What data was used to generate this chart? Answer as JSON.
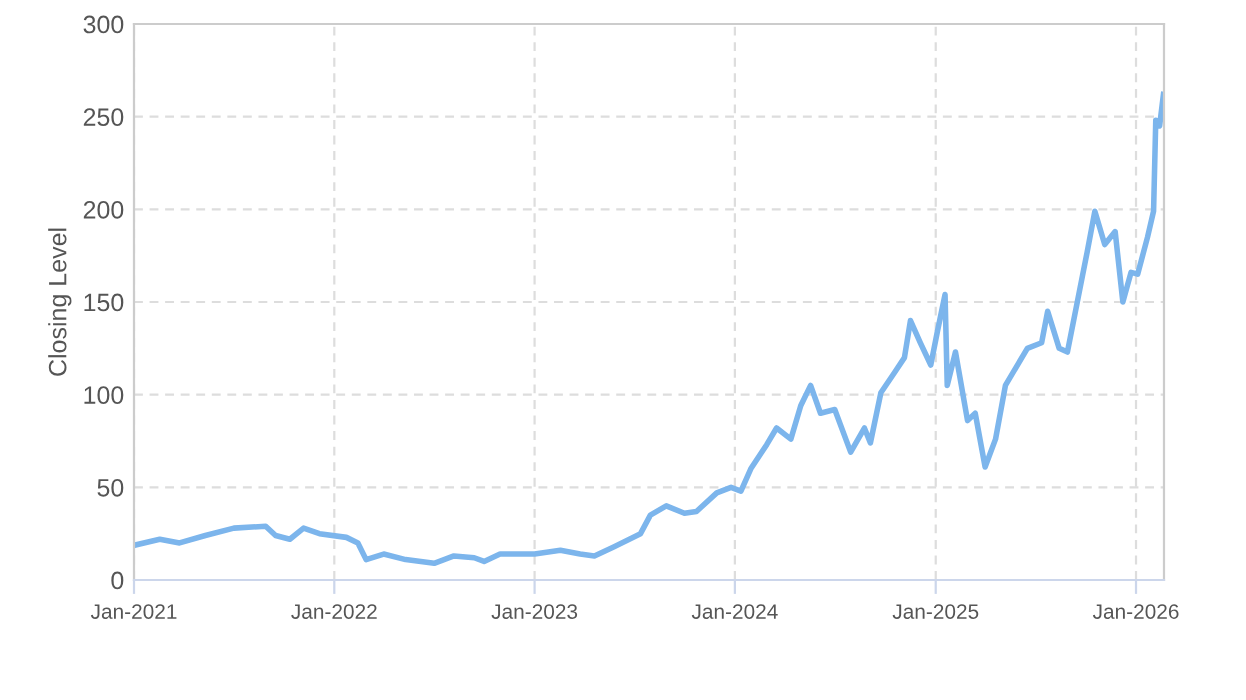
{
  "chart_data": {
    "type": "line",
    "ylabel": "Closing Level",
    "x": [
      "2021-01-05",
      "2021-02-17",
      "2021-03-25",
      "2021-05-11",
      "2021-07-02",
      "2021-08-29",
      "2021-09-16",
      "2021-10-12",
      "2021-11-06",
      "2021-12-05",
      "2022-01-23",
      "2022-02-13",
      "2022-02-28",
      "2022-04-01",
      "2022-05-11",
      "2022-07-02",
      "2022-08-07",
      "2022-09-13",
      "2022-10-01",
      "2022-10-30",
      "2023-01-01",
      "2023-02-17",
      "2023-03-25",
      "2023-04-20",
      "2023-05-26",
      "2023-07-13",
      "2023-07-31",
      "2023-08-29",
      "2023-10-01",
      "2023-10-23",
      "2023-11-29",
      "2023-12-25",
      "2024-01-12",
      "2024-01-30",
      "2024-02-28",
      "2024-03-17",
      "2024-04-12",
      "2024-04-30",
      "2024-05-18",
      "2024-06-05",
      "2024-07-01",
      "2024-07-30",
      "2024-08-24",
      "2024-09-04",
      "2024-09-23",
      "2024-10-18",
      "2024-11-05",
      "2024-11-16",
      "2024-12-04",
      "2024-12-23",
      "2025-01-04",
      "2025-01-18",
      "2025-01-22",
      "2025-02-06",
      "2025-02-28",
      "2025-03-14",
      "2025-04-01",
      "2025-04-20",
      "2025-05-08",
      "2025-06-17",
      "2025-07-13",
      "2025-07-24",
      "2025-08-14",
      "2025-08-29",
      "2025-09-16",
      "2025-10-04",
      "2025-10-18",
      "2025-11-05",
      "2025-11-24",
      "2025-12-08",
      "2025-12-23",
      "2026-01-04",
      "2026-01-22",
      "2026-02-02",
      "2026-02-06",
      "2026-02-13",
      "2026-02-20"
    ],
    "series": [
      {
        "color": "#7cb5ec",
        "values": [
          19,
          22,
          20,
          24,
          28,
          29,
          24,
          22,
          28,
          25,
          23,
          20,
          11,
          14,
          11,
          9,
          13,
          12,
          10,
          14,
          14,
          16,
          14,
          13,
          18,
          25,
          35,
          40,
          36,
          37,
          47,
          50,
          48,
          60,
          73,
          82,
          76,
          94,
          105,
          90,
          92,
          69,
          82,
          74,
          101,
          112,
          120,
          140,
          128,
          116,
          134,
          154,
          105,
          123,
          86,
          90,
          61,
          76,
          105,
          125,
          128,
          145,
          125,
          123,
          150,
          177,
          199,
          181,
          188,
          150,
          166,
          165,
          185,
          199,
          248,
          245,
          262
        ]
      }
    ],
    "xlim": [
      "2021-01-01",
      "2026-02-21"
    ],
    "xticks": [
      {
        "value": "2021-01-01",
        "label": "Jan-2021"
      },
      {
        "value": "2022-01-01",
        "label": "Jan-2022"
      },
      {
        "value": "2023-01-01",
        "label": "Jan-2023"
      },
      {
        "value": "2024-01-01",
        "label": "Jan-2024"
      },
      {
        "value": "2025-01-01",
        "label": "Jan-2025"
      },
      {
        "value": "2026-01-01",
        "label": "Jan-2026"
      }
    ],
    "ylim": [
      0,
      300
    ],
    "yticks": [
      0,
      50,
      100,
      150,
      200,
      250,
      300
    ],
    "grid": true,
    "marker": "none",
    "line_style": "solid"
  }
}
